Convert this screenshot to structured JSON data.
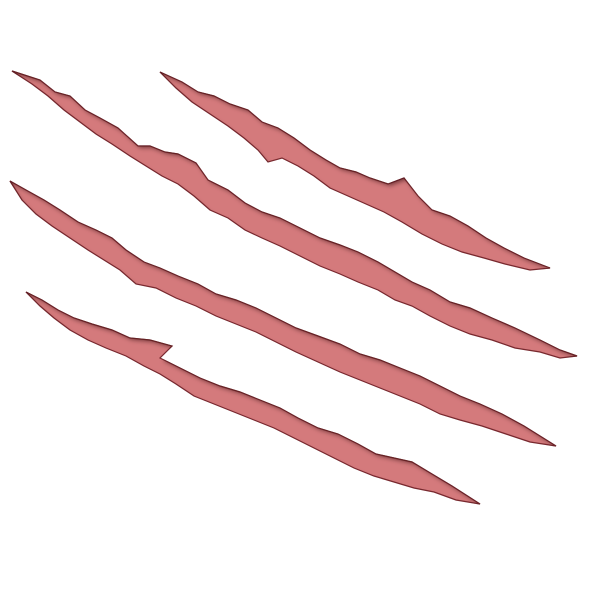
{
  "scene": {
    "subject": "claw-scratch-marks",
    "scratch_count": 4,
    "colors": {
      "background": "#ffffff",
      "wound_fill": "#d47a7c",
      "wound_edge": "#7a2a30",
      "inner_shadow": "#5a1a1f"
    }
  }
}
